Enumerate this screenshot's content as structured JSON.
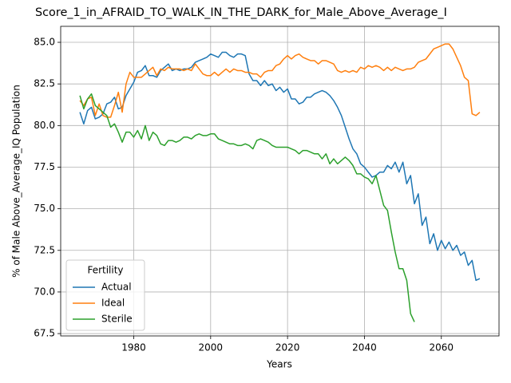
{
  "chart_data": {
    "type": "line",
    "title": "Score_1_in_AFRAID_TO_WALK_IN_THE_DARK_for_Male_Above_Average_I",
    "x_label": "Years",
    "y_label": "% of Male Above_Average_IQ Population",
    "legend_title": "Fertility",
    "legend_position": "lower left",
    "grid": true,
    "xlim": [
      1961,
      2075
    ],
    "xticks": [
      1980,
      2000,
      2020,
      2040,
      2060
    ],
    "ylim": [
      67.36,
      85.96
    ],
    "yticks": [
      67.5,
      {
        "value": 70,
        "label": "70.0"
      },
      72.5,
      {
        "value": 75,
        "label": "75.0"
      },
      77.5,
      {
        "value": 80,
        "label": "80.0"
      },
      82.5,
      {
        "value": 85,
        "label": "85.0"
      }
    ],
    "x": [
      1966,
      1967,
      1968,
      1969,
      1970,
      1971,
      1972,
      1973,
      1974,
      1975,
      1976,
      1977,
      1978,
      1979,
      1980,
      1981,
      1982,
      1983,
      1984,
      1985,
      1986,
      1987,
      1988,
      1989,
      1990,
      1991,
      1992,
      1993,
      1994,
      1995,
      1996,
      1997,
      1998,
      1999,
      2000,
      2001,
      2002,
      2003,
      2004,
      2005,
      2006,
      2007,
      2008,
      2009,
      2010,
      2011,
      2012,
      2013,
      2014,
      2015,
      2016,
      2017,
      2018,
      2019,
      2020,
      2021,
      2022,
      2023,
      2024,
      2025,
      2026,
      2027,
      2028,
      2029,
      2030,
      2031,
      2032,
      2033,
      2034,
      2035,
      2036,
      2037,
      2038,
      2039,
      2040,
      2041,
      2042,
      2043,
      2044,
      2045,
      2046,
      2047,
      2048,
      2049,
      2050,
      2051,
      2052,
      2053,
      2054,
      2055,
      2056,
      2057,
      2058,
      2059,
      2060,
      2061,
      2062,
      2063,
      2064,
      2065,
      2066,
      2067,
      2068,
      2069,
      2070
    ],
    "series": [
      {
        "name": "Actual",
        "color": "#1f77b4",
        "values": [
          80.8,
          80.1,
          80.9,
          81.1,
          80.4,
          80.5,
          80.7,
          81.3,
          81.4,
          81.7,
          81.0,
          81.1,
          81.8,
          82.2,
          82.6,
          83.2,
          83.3,
          83.6,
          83.0,
          83.0,
          82.9,
          83.3,
          83.5,
          83.7,
          83.3,
          83.4,
          83.3,
          83.4,
          83.4,
          83.5,
          83.8,
          83.9,
          84.0,
          84.1,
          84.3,
          84.2,
          84.1,
          84.4,
          84.4,
          84.2,
          84.1,
          84.3,
          84.3,
          84.2,
          83.1,
          82.7,
          82.7,
          82.4,
          82.7,
          82.4,
          82.5,
          82.1,
          82.3,
          82.0,
          82.2,
          81.6,
          81.6,
          81.3,
          81.4,
          81.7,
          81.7,
          81.9,
          82.0,
          82.1,
          82.0,
          81.8,
          81.5,
          81.1,
          80.6,
          79.9,
          79.2,
          78.6,
          78.3,
          77.7,
          77.5,
          77.2,
          76.9,
          77.0,
          77.2,
          77.2,
          77.6,
          77.4,
          77.8,
          77.2,
          77.8,
          76.5,
          77.0,
          75.3,
          75.9,
          74.0,
          74.5,
          72.9,
          73.5,
          72.5,
          73.1,
          72.6,
          73.0,
          72.5,
          72.8,
          72.2,
          72.4,
          71.6,
          71.9,
          70.7,
          70.8
        ]
      },
      {
        "name": "Ideal",
        "color": "#ff7f0e",
        "values": [
          81.5,
          81.2,
          81.6,
          81.7,
          80.6,
          81.3,
          80.6,
          80.5,
          80.5,
          81.2,
          82.0,
          80.8,
          82.5,
          83.2,
          82.9,
          82.9,
          82.9,
          83.1,
          83.3,
          83.5,
          83.0,
          83.4,
          83.3,
          83.5,
          83.4,
          83.4,
          83.4,
          83.3,
          83.4,
          83.3,
          83.7,
          83.4,
          83.1,
          83.0,
          83.0,
          83.2,
          83.0,
          83.2,
          83.4,
          83.2,
          83.4,
          83.3,
          83.3,
          83.2,
          83.2,
          83.1,
          83.1,
          82.9,
          83.2,
          83.3,
          83.3,
          83.6,
          83.7,
          84.0,
          84.2,
          84.0,
          84.2,
          84.3,
          84.1,
          84.0,
          83.9,
          83.9,
          83.7,
          83.9,
          83.9,
          83.8,
          83.7,
          83.3,
          83.2,
          83.3,
          83.2,
          83.3,
          83.2,
          83.5,
          83.4,
          83.6,
          83.5,
          83.6,
          83.5,
          83.3,
          83.5,
          83.3,
          83.5,
          83.4,
          83.3,
          83.4,
          83.4,
          83.5,
          83.8,
          83.9,
          84.0,
          84.3,
          84.6,
          84.7,
          84.8,
          84.9,
          84.9,
          84.6,
          84.1,
          83.6,
          82.9,
          82.7,
          80.7,
          80.6,
          80.8
        ]
      },
      {
        "name": "Sterile",
        "color": "#2ca02c",
        "values": [
          81.8,
          81.0,
          81.6,
          81.9,
          81.2,
          81.0,
          80.8,
          80.6,
          79.9,
          80.1,
          79.6,
          79.0,
          79.6,
          79.6,
          79.3,
          79.7,
          79.2,
          80.0,
          79.1,
          79.6,
          79.4,
          78.9,
          78.8,
          79.1,
          79.1,
          79.0,
          79.1,
          79.3,
          79.3,
          79.2,
          79.4,
          79.5,
          79.4,
          79.4,
          79.5,
          79.5,
          79.2,
          79.1,
          79.0,
          78.9,
          78.9,
          78.8,
          78.8,
          78.9,
          78.8,
          78.6,
          79.1,
          79.2,
          79.1,
          79.0,
          78.8,
          78.7,
          78.7,
          78.7,
          78.7,
          78.6,
          78.5,
          78.3,
          78.5,
          78.5,
          78.4,
          78.3,
          78.3,
          78.0,
          78.3,
          77.7,
          78.0,
          77.7,
          77.9,
          78.1,
          77.9,
          77.6,
          77.1,
          77.1,
          76.9,
          76.8,
          76.5,
          77.0,
          76.1,
          75.2,
          74.9,
          73.6,
          72.4,
          71.4,
          71.4,
          70.7,
          68.7,
          68.2,
          null,
          null,
          null,
          null,
          null,
          null,
          null,
          null,
          null,
          null,
          null,
          null,
          null,
          null,
          null,
          null,
          null
        ]
      }
    ]
  }
}
